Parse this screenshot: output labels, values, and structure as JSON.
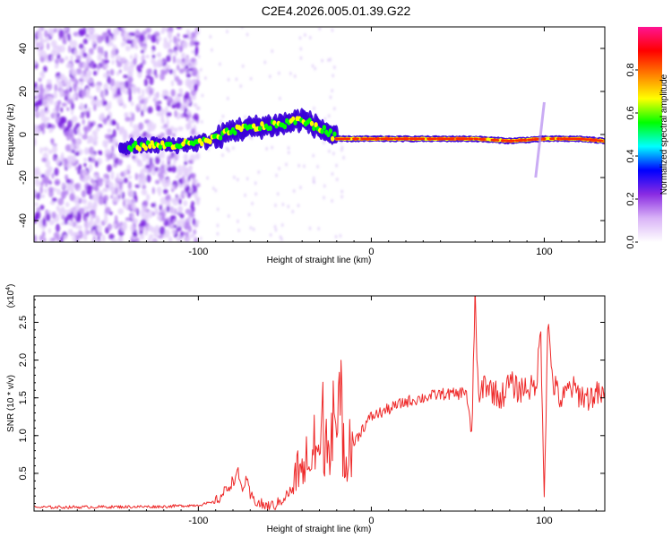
{
  "title": "C2E4.2026.005.01.39.G22",
  "chart_data": [
    {
      "type": "heatmap",
      "name": "spectrogram",
      "xlabel": "Height of straight line (km)",
      "ylabel": "Frequency (Hz)",
      "xlim": [
        -195,
        135
      ],
      "ylim": [
        -50,
        50
      ],
      "xticks": [
        -100,
        0,
        100
      ],
      "yticks": [
        -40,
        -20,
        0,
        20,
        40
      ],
      "colorbar": {
        "label": "Normalized spectral amplitude",
        "range": [
          0,
          1
        ],
        "ticks": [
          "0.0",
          "0.2",
          "0.4",
          "0.6",
          "0.8"
        ],
        "colors": [
          "#ffffff",
          "#d9b3f7",
          "#8a2be2",
          "#0000ff",
          "#00ffff",
          "#00ff00",
          "#ffff00",
          "#ff8000",
          "#ff0000",
          "#ff1493"
        ]
      },
      "ridge": {
        "x": [
          -145,
          -130,
          -115,
          -100,
          -90,
          -80,
          -70,
          -60,
          -50,
          -40,
          -30,
          -25,
          -20,
          0,
          20,
          40,
          60,
          80,
          100,
          120,
          135
        ],
        "freq": [
          -6,
          -5,
          -5,
          -4,
          -2,
          2,
          3,
          4,
          5,
          7,
          3,
          1,
          -2,
          -2,
          -2,
          -2,
          -2,
          -3,
          -2,
          -2,
          -3
        ]
      }
    },
    {
      "type": "line",
      "name": "snr",
      "xlabel": "Height of straight line (km)",
      "ylabel": "SNR (10 * v/v)",
      "multiplier": "(x10",
      "multiplier_exp": "4",
      "multiplier_close": ")",
      "xlim": [
        -195,
        135
      ],
      "ylim": [
        0,
        2.85
      ],
      "xticks": [
        -100,
        0,
        100
      ],
      "yticks": [
        "0.5",
        "1.0",
        "1.5",
        "2.0",
        "2.5"
      ],
      "color": "#ee2a2a",
      "series": [
        {
          "name": "SNR",
          "x": [
            -195,
            -120,
            -100,
            -90,
            -85,
            -80,
            -77,
            -75,
            -72,
            -70,
            -65,
            -60,
            -55,
            -45,
            -43,
            -40,
            -38,
            -35,
            -32,
            -30,
            -28,
            -25,
            -22,
            -20,
            -18,
            -15,
            -12,
            -10,
            -5,
            0,
            10,
            20,
            30,
            40,
            50,
            55,
            58,
            60,
            62,
            65,
            70,
            75,
            80,
            85,
            90,
            95,
            98,
            100,
            102,
            105,
            110,
            115,
            120,
            125,
            130,
            135
          ],
          "y": [
            0.05,
            0.06,
            0.08,
            0.12,
            0.25,
            0.4,
            0.5,
            0.3,
            0.4,
            0.2,
            0.1,
            0.06,
            0.08,
            0.3,
            0.6,
            0.5,
            0.8,
            0.6,
            1.0,
            0.7,
            1.2,
            0.9,
            1.7,
            0.8,
            1.5,
            0.7,
            1.2,
            0.9,
            1.1,
            1.25,
            1.35,
            1.45,
            1.5,
            1.55,
            1.55,
            1.6,
            0.9,
            2.9,
            1.4,
            1.7,
            1.6,
            1.5,
            1.7,
            1.6,
            1.65,
            1.6,
            2.4,
            0.2,
            2.5,
            1.7,
            1.45,
            1.65,
            1.55,
            1.5,
            1.55,
            1.5
          ]
        }
      ]
    }
  ]
}
